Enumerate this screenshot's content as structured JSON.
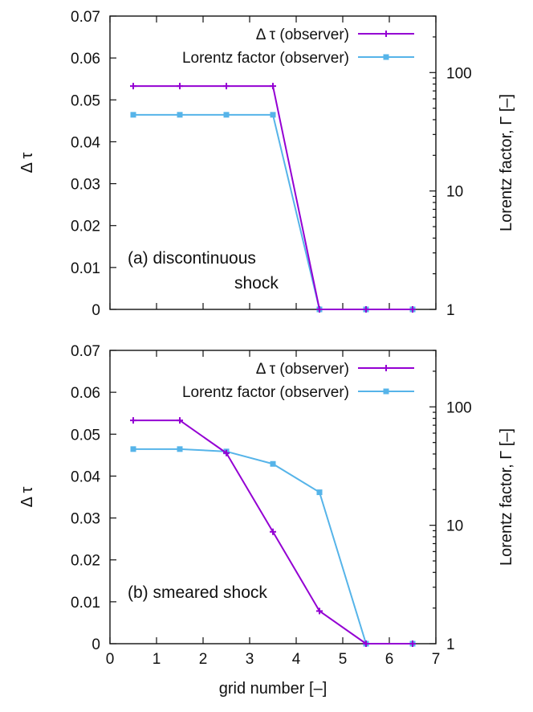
{
  "chart_data": [
    {
      "type": "line",
      "panel": "a",
      "x": [
        0.5,
        1.5,
        2.5,
        3.5,
        4.5,
        5.5,
        6.5
      ],
      "xlim": [
        0,
        7
      ],
      "xticks": [
        "0",
        "1",
        "2",
        "3",
        "4",
        "5",
        "6",
        "7"
      ],
      "show_xticks": false,
      "xlabel": "",
      "ylabel": "Δ τ",
      "ylim": [
        0,
        0.07
      ],
      "yticks": [
        "0",
        "0.01",
        "0.02",
        "0.03",
        "0.04",
        "0.05",
        "0.06",
        "0.07"
      ],
      "y2label": "Lorentz factor, Γ [–]",
      "y2lim": [
        1,
        300
      ],
      "y2scale": "log",
      "y2ticks": [
        {
          "value": 1,
          "label": "1"
        },
        {
          "value": 10,
          "label": "10"
        },
        {
          "value": 100,
          "label": "100"
        }
      ],
      "annotation": [
        "(a)  discontinuous",
        "shock"
      ],
      "legend_position": "top-right",
      "series": [
        {
          "name": "Δ τ (observer)",
          "axis": "left",
          "color": "#9400d3",
          "marker": "plus",
          "values": [
            0.0533,
            0.0533,
            0.0533,
            0.0533,
            0.0,
            0.0,
            0.0
          ]
        },
        {
          "name": "Lorentz factor (observer)",
          "axis": "right",
          "color": "#56b4e9",
          "marker": "square",
          "values": [
            44,
            44,
            44,
            44,
            1,
            1,
            1
          ]
        }
      ]
    },
    {
      "type": "line",
      "panel": "b",
      "x": [
        0.5,
        1.5,
        2.5,
        3.5,
        4.5,
        5.5,
        6.5
      ],
      "xlim": [
        0,
        7
      ],
      "xticks": [
        "0",
        "1",
        "2",
        "3",
        "4",
        "5",
        "6",
        "7"
      ],
      "show_xticks": true,
      "xlabel": "grid number [–]",
      "ylabel": "Δ τ",
      "ylim": [
        0,
        0.07
      ],
      "yticks": [
        "0",
        "0.01",
        "0.02",
        "0.03",
        "0.04",
        "0.05",
        "0.06",
        "0.07"
      ],
      "y2label": "Lorentz factor, Γ [–]",
      "y2lim": [
        1,
        300
      ],
      "y2scale": "log",
      "y2ticks": [
        {
          "value": 1,
          "label": "1"
        },
        {
          "value": 10,
          "label": "10"
        },
        {
          "value": 100,
          "label": "100"
        }
      ],
      "annotation": [
        "(b) smeared shock"
      ],
      "legend_position": "top-right",
      "series": [
        {
          "name": "Δ τ (observer)",
          "axis": "left",
          "color": "#9400d3",
          "marker": "plus",
          "values": [
            0.0533,
            0.0533,
            0.0455,
            0.0267,
            0.0078,
            0.0,
            0.0
          ]
        },
        {
          "name": "Lorentz factor (observer)",
          "axis": "right",
          "color": "#56b4e9",
          "marker": "square",
          "values": [
            44,
            44,
            42,
            33,
            19,
            1,
            1
          ]
        }
      ]
    }
  ]
}
